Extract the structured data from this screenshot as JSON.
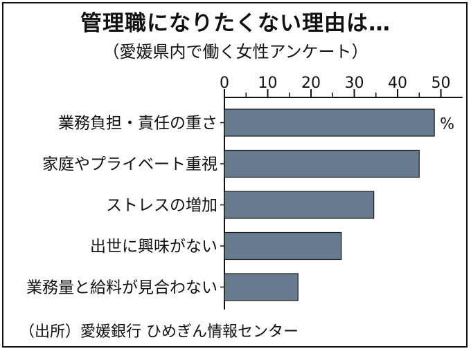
{
  "chart_data": {
    "type": "bar",
    "orientation": "horizontal",
    "title": "管理職になりたくない理由は…",
    "subtitle": "（愛媛県内で働く女性アンケート）",
    "categories": [
      "業務負担・責任の重さ",
      "家庭やプライベート重視",
      "ストレスの増加",
      "出世に興味がない",
      "業務量と給料が見合わない"
    ],
    "values": [
      48.5,
      45,
      34.5,
      27,
      17
    ],
    "xlim": [
      0,
      55
    ],
    "ticks": [
      "0",
      "10",
      "20",
      "30",
      "40",
      "50"
    ],
    "tick_values": [
      0,
      10,
      20,
      30,
      40,
      50
    ],
    "unit": "%",
    "axis_position": "top",
    "grid": false,
    "bar_color": "#677b8f",
    "source": "（出所）愛媛銀行 ひめぎん情報センター"
  }
}
